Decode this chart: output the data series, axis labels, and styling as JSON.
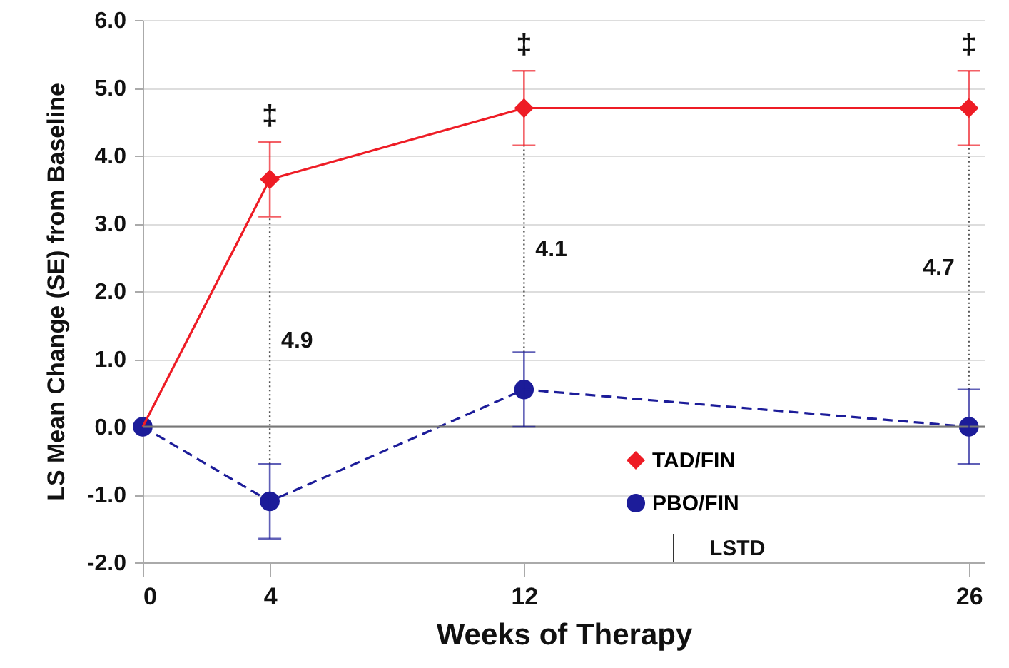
{
  "chart_data": {
    "type": "line",
    "xlabel": "Weeks of Therapy",
    "ylabel": "LS Mean Change (SE) from Baseline",
    "x": [
      0,
      4,
      12,
      26
    ],
    "series": [
      {
        "name": "TAD/FIN",
        "color": "#ee1c25",
        "values": [
          0,
          3.65,
          4.7,
          4.7
        ],
        "errors": [
          null,
          0.55,
          0.55,
          0.55
        ],
        "marker": "diamond",
        "line_style": "solid"
      },
      {
        "name": "PBO/FIN",
        "color": "#1c1c99",
        "values": [
          0,
          -1.1,
          0.55,
          0
        ],
        "errors": [
          null,
          0.55,
          0.55,
          0.55
        ],
        "marker": "circle",
        "line_style": "dashed"
      }
    ],
    "xlim": [
      0,
      26.5
    ],
    "xticks": [
      0,
      4,
      12,
      26
    ],
    "ylim": [
      -2,
      6
    ],
    "yticks": [
      {
        "value": -2,
        "label": "-2.0"
      },
      {
        "value": -1,
        "label": "-1.0"
      },
      {
        "value": 0,
        "label": "0.0"
      },
      {
        "value": 1,
        "label": "1.0"
      },
      {
        "value": 2,
        "label": "2.0"
      },
      {
        "value": 3,
        "label": "3.0"
      },
      {
        "value": 4,
        "label": "4.0"
      },
      {
        "value": 5,
        "label": "5.0"
      },
      {
        "value": 6,
        "label": "6.0"
      }
    ],
    "grid": "y",
    "legend": "bottom right",
    "ref_lines": [
      {
        "axis": "y",
        "value": 0,
        "color": "#777777"
      }
    ],
    "annotations": [
      "‡",
      "‡",
      "‡",
      "4.9",
      "4.1",
      "4.7",
      "LSTD"
    ]
  }
}
